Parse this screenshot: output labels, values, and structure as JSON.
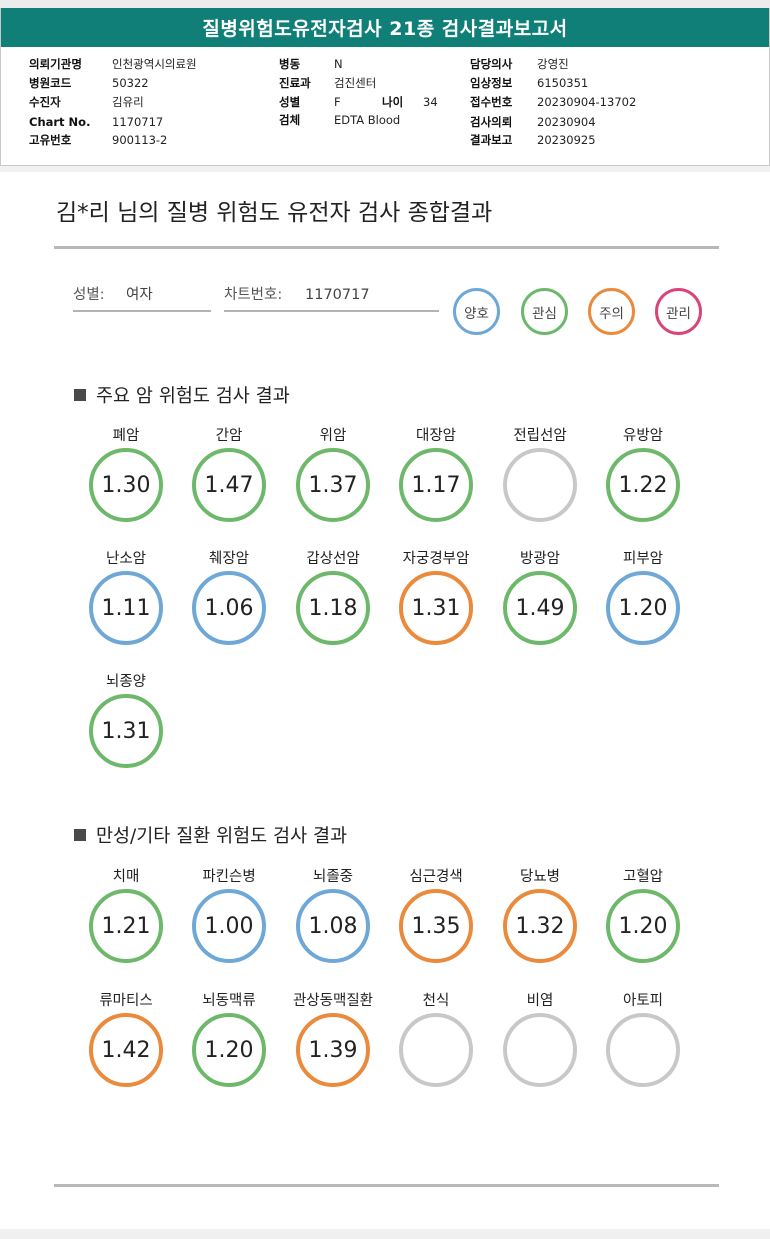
{
  "report": {
    "title": "질병위험도유전자검사 21종 검사결과보고서",
    "fields": {
      "institution": {
        "label": "의뢰기관명",
        "value": "인천광역시의료원"
      },
      "hospital_code": {
        "label": "병원코드",
        "value": "50322"
      },
      "patient": {
        "label": "수진자",
        "value": "김유리"
      },
      "chart_no": {
        "label": "Chart No.",
        "value": "1170717"
      },
      "unique_no": {
        "label": "고유번호",
        "value": "900113-2"
      },
      "ward": {
        "label": "병동",
        "value": "N"
      },
      "department": {
        "label": "진료과",
        "value": "검진센터"
      },
      "sex": {
        "label": "성별",
        "value": "F"
      },
      "age": {
        "label": "나이",
        "value": "34"
      },
      "specimen": {
        "label": "검체",
        "value": "EDTA Blood"
      },
      "doctor": {
        "label": "담당의사",
        "value": "강영진"
      },
      "clinical_info": {
        "label": "임상정보",
        "value": "6150351"
      },
      "receipt_no": {
        "label": "접수번호",
        "value": "20230904-13702"
      },
      "request_date": {
        "label": "검사의뢰",
        "value": "20230904"
      },
      "report_date": {
        "label": "결과보고",
        "value": "20230925"
      }
    }
  },
  "summary": {
    "title": "김*리 님의 질병 위험도 유전자 검사 종합결과",
    "sex_label": "성별:",
    "sex_value": "여자",
    "chart_label": "차트번호:",
    "chart_value": "1170717"
  },
  "legend": [
    {
      "label": "양호",
      "color": "#6fa8d6"
    },
    {
      "label": "관심",
      "color": "#6db86a"
    },
    {
      "label": "주의",
      "color": "#ea8a3c"
    },
    {
      "label": "관리",
      "color": "#d9457a"
    }
  ],
  "colors": {
    "blue": "#6fa8d6",
    "green": "#6db86a",
    "orange": "#ea8a3c",
    "gray": "#c8c8c8"
  },
  "sections": [
    {
      "title": "주요 암 위험도 검사 결과",
      "items": [
        {
          "name": "폐암",
          "value": "1.30",
          "level": "green"
        },
        {
          "name": "간암",
          "value": "1.47",
          "level": "green"
        },
        {
          "name": "위암",
          "value": "1.37",
          "level": "green"
        },
        {
          "name": "대장암",
          "value": "1.17",
          "level": "green"
        },
        {
          "name": "전립선암",
          "value": "",
          "level": "gray"
        },
        {
          "name": "유방암",
          "value": "1.22",
          "level": "green"
        },
        {
          "name": "난소암",
          "value": "1.11",
          "level": "blue"
        },
        {
          "name": "췌장암",
          "value": "1.06",
          "level": "blue"
        },
        {
          "name": "갑상선암",
          "value": "1.18",
          "level": "green"
        },
        {
          "name": "자궁경부암",
          "value": "1.31",
          "level": "orange"
        },
        {
          "name": "방광암",
          "value": "1.49",
          "level": "green"
        },
        {
          "name": "피부암",
          "value": "1.20",
          "level": "blue"
        },
        {
          "name": "뇌종양",
          "value": "1.31",
          "level": "green"
        }
      ]
    },
    {
      "title": "만성/기타 질환 위험도 검사 결과",
      "items": [
        {
          "name": "치매",
          "value": "1.21",
          "level": "green"
        },
        {
          "name": "파킨슨병",
          "value": "1.00",
          "level": "blue"
        },
        {
          "name": "뇌졸중",
          "value": "1.08",
          "level": "blue"
        },
        {
          "name": "심근경색",
          "value": "1.35",
          "level": "orange"
        },
        {
          "name": "당뇨병",
          "value": "1.32",
          "level": "orange"
        },
        {
          "name": "고혈압",
          "value": "1.20",
          "level": "green"
        },
        {
          "name": "류마티스",
          "value": "1.42",
          "level": "orange"
        },
        {
          "name": "뇌동맥류",
          "value": "1.20",
          "level": "green"
        },
        {
          "name": "관상동맥질환",
          "value": "1.39",
          "level": "orange"
        },
        {
          "name": "천식",
          "value": "",
          "level": "gray"
        },
        {
          "name": "비염",
          "value": "",
          "level": "gray"
        },
        {
          "name": "아토피",
          "value": "",
          "level": "gray"
        }
      ]
    }
  ]
}
